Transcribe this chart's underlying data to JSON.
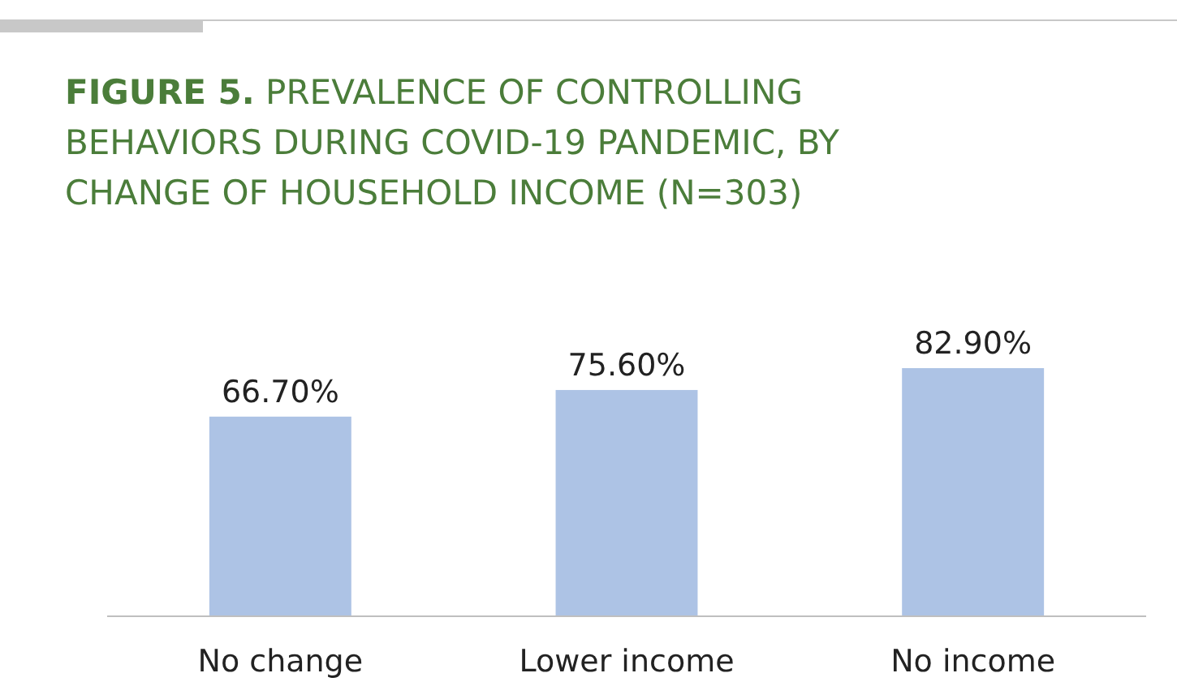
{
  "chart_data": {
    "type": "bar",
    "title": "FIGURE 5. PREVALENCE OF CONTROLLING BEHAVIORS DURING COVID-19 PANDEMIC, BY CHANGE OF HOUSEHOLD INCOME (N=303)",
    "categories": [
      "No change",
      "Lower income",
      "No income"
    ],
    "values": [
      66.7,
      75.6,
      82.9
    ],
    "value_labels": [
      "66.70%",
      "75.60%",
      "82.90%"
    ],
    "color": "#adc3e5",
    "tick_labels": "x"
  }
}
